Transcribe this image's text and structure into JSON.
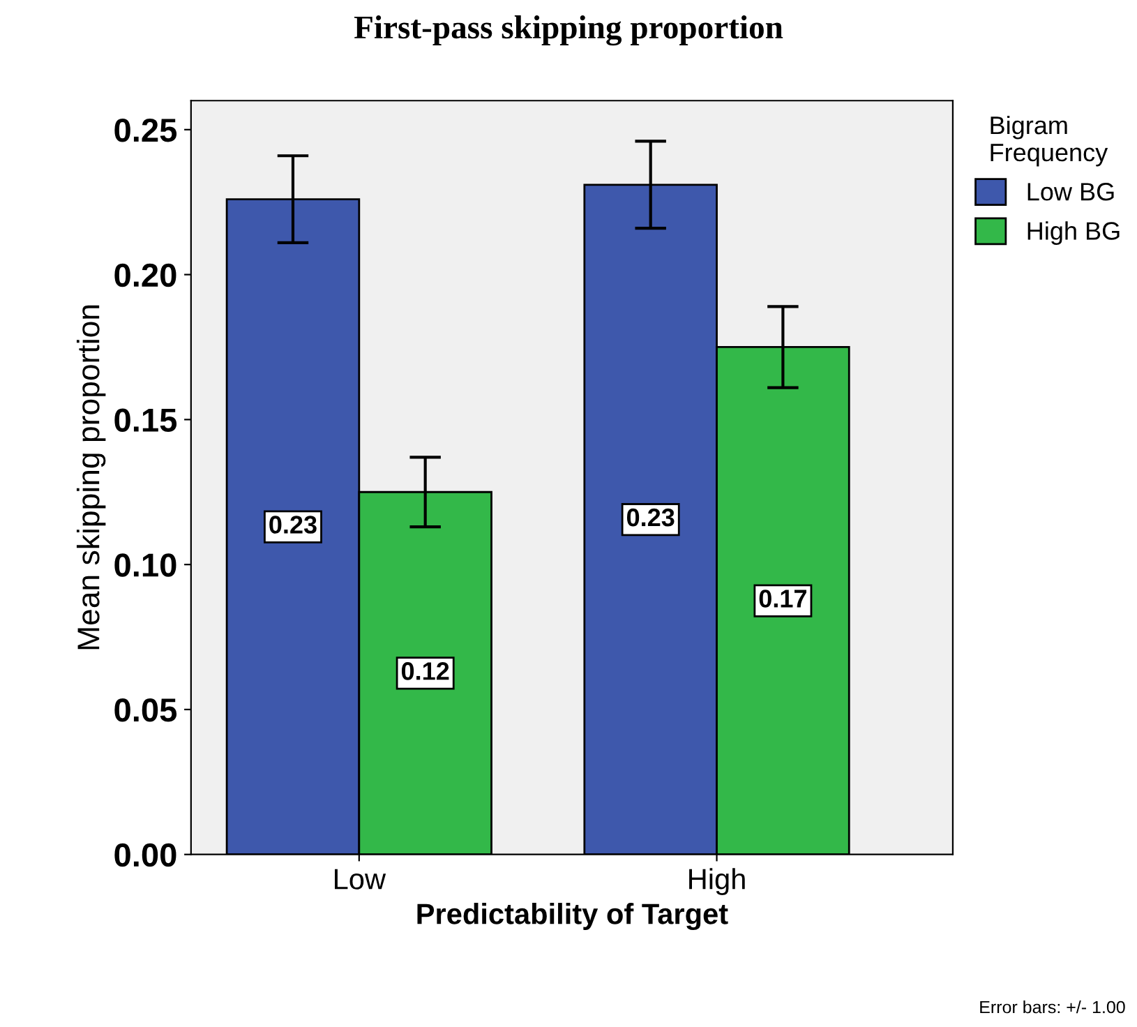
{
  "chart_data": {
    "type": "bar",
    "title": "First-pass skipping proportion",
    "xlabel": "Predictability of Target",
    "ylabel": "Mean skipping proportion",
    "legend_title": "Bigram\nFrequency",
    "categories": [
      "Low",
      "High"
    ],
    "series": [
      {
        "name": "Low BG",
        "color": "#3e58ac",
        "values": [
          0.226,
          0.231
        ],
        "errors": [
          [
            0.211,
            0.241
          ],
          [
            0.216,
            0.246
          ]
        ],
        "value_labels": [
          "0.23",
          "0.23"
        ]
      },
      {
        "name": "High BG",
        "color": "#33b849",
        "values": [
          0.125,
          0.175
        ],
        "errors": [
          [
            0.113,
            0.137
          ],
          [
            0.161,
            0.189
          ]
        ],
        "value_labels": [
          "0.12",
          "0.17"
        ]
      }
    ],
    "ylim": [
      0,
      0.26
    ],
    "yticks": [
      {
        "value": 0,
        "label": "0.00"
      },
      {
        "value": 0.05,
        "label": "0.05"
      },
      {
        "value": 0.1,
        "label": "0.10"
      },
      {
        "value": 0.15,
        "label": "0.15"
      },
      {
        "value": 0.2,
        "label": "0.20"
      },
      {
        "value": 0.25,
        "label": "0.25"
      }
    ],
    "grid": false,
    "legend": "right",
    "annotations": [
      "Error bars: +/- 1.00"
    ]
  }
}
